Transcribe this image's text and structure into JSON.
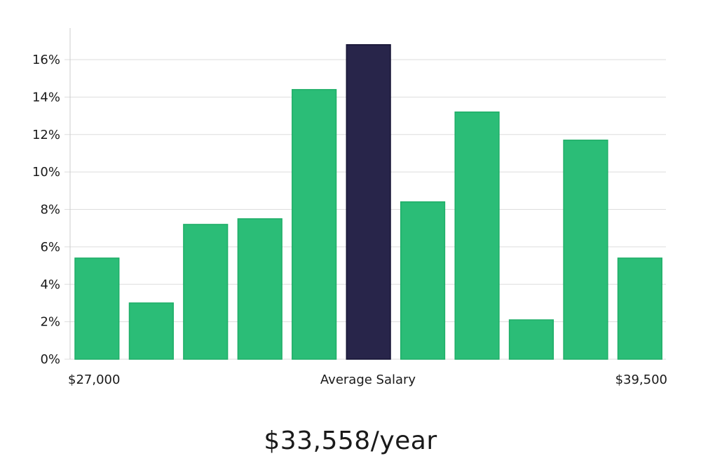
{
  "summary": "$33,558/year",
  "colors": {
    "bar": "#2bbd77",
    "bar_stroke": "#1fae68",
    "highlight": "#28254a",
    "highlight_stroke": "#141233",
    "grid": "#dddddd",
    "axis": "#cccccc"
  },
  "chart_data": {
    "type": "bar",
    "x_axis_labels": {
      "left": "$27,000",
      "center": "Average Salary",
      "right": "$39,500"
    },
    "values": [
      5.4,
      3.0,
      7.2,
      7.5,
      14.4,
      16.8,
      8.4,
      13.2,
      2.1,
      11.7,
      5.4
    ],
    "highlight_index": 5,
    "value_unit": "%",
    "ylim": [
      0,
      17.5
    ],
    "y_ticks": [
      0,
      2,
      4,
      6,
      8,
      10,
      12,
      14,
      16
    ],
    "y_tick_labels": [
      "0%",
      "2%",
      "4%",
      "6%",
      "8%",
      "10%",
      "12%",
      "14%",
      "16%"
    ],
    "grid": true
  }
}
